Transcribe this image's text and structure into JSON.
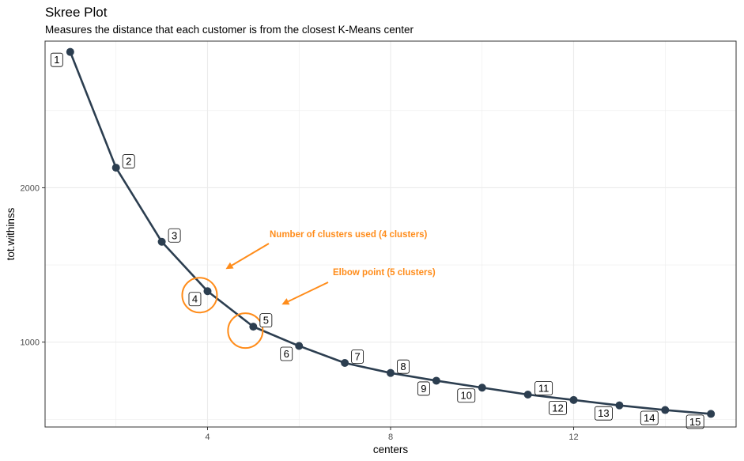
{
  "chart_data": {
    "type": "line",
    "title": "Skree Plot",
    "subtitle": "Measures the distance that each customer is from the closest K-Means center",
    "xlabel": "centers",
    "ylabel": "tot.withinss",
    "xlim": [
      0.45,
      15.55
    ],
    "ylim": [
      450,
      2950
    ],
    "xticks": [
      4,
      8,
      12
    ],
    "yticks": [
      1000,
      2000
    ],
    "grid": true,
    "x": [
      1,
      2,
      3,
      4,
      5,
      6,
      7,
      8,
      9,
      10,
      11,
      12,
      13,
      14,
      15
    ],
    "y": [
      2880,
      2130,
      1650,
      1330,
      1100,
      975,
      865,
      800,
      750,
      705,
      660,
      625,
      590,
      560,
      535
    ],
    "point_labels": [
      "1",
      "2",
      "3",
      "4",
      "5",
      "6",
      "7",
      "8",
      "9",
      "10",
      "11",
      "12",
      "13",
      "14",
      "15"
    ],
    "annotations": [
      {
        "text": "Number of clusters used (4 clusters)",
        "target_center": 4
      },
      {
        "text": "Elbow point (5 clusters)",
        "target_center": 5
      }
    ],
    "colors": {
      "line": "#2c3e50",
      "annotation": "#ff8c1a",
      "grid": "#ebebeb",
      "panel_border": "#333333"
    }
  }
}
